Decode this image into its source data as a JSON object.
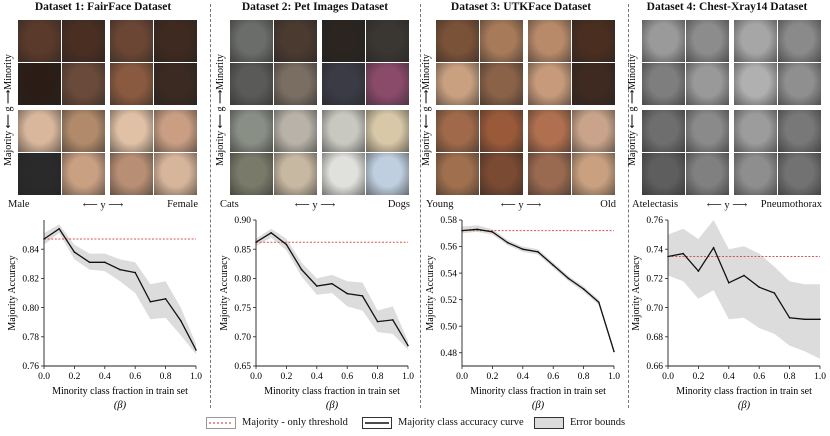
{
  "panels": [
    {
      "title": "Dataset 1: FairFace Dataset",
      "left_label": "Male",
      "mid_label": "⟵ y ⟶",
      "right_label": "Female",
      "side_label": "Majority ⟵ g ⟶Minority",
      "image_tones": [
        "#5a3a2a",
        "#4a2e22",
        "#6b4634",
        "#3e2a20",
        "#2b1d16",
        "#6a4a3a",
        "#8a5a40",
        "#3a2a22",
        "#d9b79c",
        "#b08a6a",
        "#e0c1a6",
        "#c99e83",
        "#2a2a2a",
        "#caa083",
        "#b88f74",
        "#d7b59b"
      ]
    },
    {
      "title": "Dataset 2: Pet Images Dataset",
      "left_label": "Cats",
      "mid_label": "⟵ y ⟶",
      "right_label": "Dogs",
      "side_label": "Majority ⟵ g ⟶Minority",
      "image_tones": [
        "#6b6d6a",
        "#4a3a30",
        "#2b2420",
        "#3a3632",
        "#5a5a58",
        "#7a6e62",
        "#3b3b46",
        "#8a4a6a",
        "#8a8f86",
        "#b8b2a8",
        "#c9c8c0",
        "#d8c8a8",
        "#7a7a6a",
        "#c7b8a2",
        "#e0e0dc",
        "#bfcfe0"
      ]
    },
    {
      "title": "Dataset 3: UTKFace Dataset",
      "left_label": "Young",
      "mid_label": "⟵ y ⟶",
      "right_label": "Old",
      "side_label": "Majority ⟵ g ⟶Minority",
      "image_tones": [
        "#7a5238",
        "#a77a5a",
        "#b88a6a",
        "#4a2e20",
        "#c9a080",
        "#8a6248",
        "#c69a7a",
        "#3e2a20",
        "#a06a4a",
        "#9a5a3a",
        "#b07050",
        "#c9a48a",
        "#a0704e",
        "#7a4a32",
        "#9a6a50",
        "#c9a080"
      ]
    },
    {
      "title": "Dataset 4: Chest-Xray14 Dataset",
      "left_label": "Atelectasis",
      "mid_label": "⟵ y ⟶",
      "right_label": "Pneumothorax",
      "side_label": "Majority ⟵ g ⟶Minority",
      "image_tones": [
        "#9a9a9a",
        "#8c8c8c",
        "#a6a6a6",
        "#8a8a8a",
        "#7e7e7e",
        "#999999",
        "#b0b0b0",
        "#8f8f8f",
        "#6e6e6e",
        "#8a8a8a",
        "#9c9c9c",
        "#787878",
        "#5e5e5e",
        "#808080",
        "#8e8e8e",
        "#727272"
      ]
    }
  ],
  "legend": {
    "threshold_label": "Majority - only threshold",
    "curve_label": "Majority class accuracy curve",
    "bounds_label": "Error bounds"
  },
  "colors": {
    "threshold": "#d9534f",
    "curve": "#111111",
    "bounds": "#dcdcdc"
  },
  "chart_data": [
    {
      "type": "line",
      "title": "Dataset 1: FairFace Dataset",
      "xlabel": "Minority class fraction in train set",
      "xlabel2": "(β)",
      "ylabel": "Majority Accuracy",
      "xlim": [
        0.0,
        1.0
      ],
      "ylim": [
        0.76,
        0.86
      ],
      "xticks": [
        0.0,
        0.2,
        0.4,
        0.6,
        0.8,
        1.0
      ],
      "xtick_labels": [
        "0.0",
        "0.2",
        "0.4",
        "0.6",
        "0.8",
        "1.0"
      ],
      "yticks": [
        0.76,
        0.78,
        0.8,
        0.82,
        0.84
      ],
      "ytick_labels": [
        "0.76",
        "0.78",
        "0.80",
        "0.82",
        "0.84"
      ],
      "threshold": 0.847,
      "x": [
        0.0,
        0.1,
        0.2,
        0.3,
        0.4,
        0.5,
        0.6,
        0.7,
        0.8,
        0.9,
        1.0
      ],
      "y": [
        0.847,
        0.854,
        0.838,
        0.831,
        0.831,
        0.826,
        0.824,
        0.804,
        0.806,
        0.791,
        0.771
      ],
      "lower": [
        0.843,
        0.851,
        0.833,
        0.826,
        0.825,
        0.818,
        0.81,
        0.792,
        0.793,
        0.781,
        0.768
      ],
      "upper": [
        0.851,
        0.857,
        0.843,
        0.837,
        0.837,
        0.833,
        0.831,
        0.816,
        0.818,
        0.8,
        0.775
      ]
    },
    {
      "type": "line",
      "title": "Dataset 2: Pet Images Dataset",
      "xlabel": "Minority class fraction in train set",
      "xlabel2": "(β)",
      "ylabel": "Majority Accuracy",
      "xlim": [
        0.0,
        1.0
      ],
      "ylim": [
        0.65,
        0.9
      ],
      "xticks": [
        0.0,
        0.2,
        0.4,
        0.6,
        0.8,
        1.0
      ],
      "xtick_labels": [
        "0.0",
        "0.2",
        "0.4",
        "0.6",
        "0.8",
        "1.0"
      ],
      "yticks": [
        0.65,
        0.7,
        0.75,
        0.8,
        0.85,
        0.9
      ],
      "ytick_labels": [
        "0.65",
        "0.70",
        "0.75",
        "0.80",
        "0.85",
        "0.90"
      ],
      "threshold": 0.862,
      "x": [
        0.0,
        0.1,
        0.2,
        0.3,
        0.4,
        0.5,
        0.6,
        0.7,
        0.8,
        0.9,
        1.0
      ],
      "y": [
        0.862,
        0.878,
        0.858,
        0.815,
        0.787,
        0.791,
        0.774,
        0.77,
        0.726,
        0.729,
        0.685
      ],
      "lower": [
        0.855,
        0.87,
        0.848,
        0.803,
        0.772,
        0.775,
        0.752,
        0.745,
        0.708,
        0.705,
        0.678
      ],
      "upper": [
        0.868,
        0.885,
        0.868,
        0.827,
        0.8,
        0.806,
        0.795,
        0.793,
        0.745,
        0.752,
        0.693
      ]
    },
    {
      "type": "line",
      "title": "Dataset 3: UTKFace Dataset",
      "xlabel": "Minority class fraction in train set",
      "xlabel2": "(β)",
      "ylabel": "Majority Accuracy",
      "xlim": [
        0.0,
        1.0
      ],
      "ylim": [
        0.47,
        0.58
      ],
      "xticks": [
        0.0,
        0.2,
        0.4,
        0.6,
        0.8,
        1.0
      ],
      "xtick_labels": [
        "0.0",
        "0.2",
        "0.4",
        "0.6",
        "0.8",
        "1.0"
      ],
      "yticks": [
        0.48,
        0.5,
        0.52,
        0.54,
        0.56,
        0.58
      ],
      "ytick_labels": [
        "0.48",
        "0.50",
        "0.52",
        "0.54",
        "0.56",
        "0.58"
      ],
      "threshold": 0.572,
      "x": [
        0.0,
        0.1,
        0.2,
        0.3,
        0.4,
        0.5,
        0.6,
        0.7,
        0.8,
        0.9,
        1.0
      ],
      "y": [
        0.572,
        0.573,
        0.571,
        0.563,
        0.558,
        0.556,
        0.546,
        0.536,
        0.528,
        0.518,
        0.481
      ],
      "lower": [
        0.57,
        0.571,
        0.569,
        0.561,
        0.556,
        0.554,
        0.544,
        0.534,
        0.526,
        0.516,
        0.479
      ],
      "upper": [
        0.575,
        0.576,
        0.573,
        0.565,
        0.56,
        0.558,
        0.548,
        0.538,
        0.53,
        0.52,
        0.483
      ]
    },
    {
      "type": "line",
      "title": "Dataset 4: Chest-Xray14 Dataset",
      "xlabel": "Minority class fraction in train set",
      "xlabel2": "(β)",
      "ylabel": "Majority Accuracy",
      "xlim": [
        0.0,
        1.0
      ],
      "ylim": [
        0.66,
        0.76
      ],
      "xticks": [
        0.0,
        0.2,
        0.4,
        0.6,
        0.8,
        1.0
      ],
      "xtick_labels": [
        "0.0",
        "0.2",
        "0.4",
        "0.6",
        "0.8",
        "1.0"
      ],
      "yticks": [
        0.66,
        0.68,
        0.7,
        0.72,
        0.74,
        0.76
      ],
      "ytick_labels": [
        "0.66",
        "0.68",
        "0.70",
        "0.72",
        "0.74",
        "0.76"
      ],
      "threshold": 0.735,
      "x": [
        0.0,
        0.1,
        0.2,
        0.3,
        0.4,
        0.5,
        0.6,
        0.7,
        0.8,
        0.9,
        1.0
      ],
      "y": [
        0.735,
        0.737,
        0.725,
        0.741,
        0.717,
        0.722,
        0.714,
        0.71,
        0.693,
        0.692,
        0.692
      ],
      "lower": [
        0.722,
        0.718,
        0.706,
        0.712,
        0.692,
        0.693,
        0.686,
        0.682,
        0.674,
        0.67,
        0.665
      ],
      "upper": [
        0.75,
        0.754,
        0.747,
        0.76,
        0.74,
        0.742,
        0.737,
        0.728,
        0.718,
        0.716,
        0.716
      ]
    }
  ]
}
